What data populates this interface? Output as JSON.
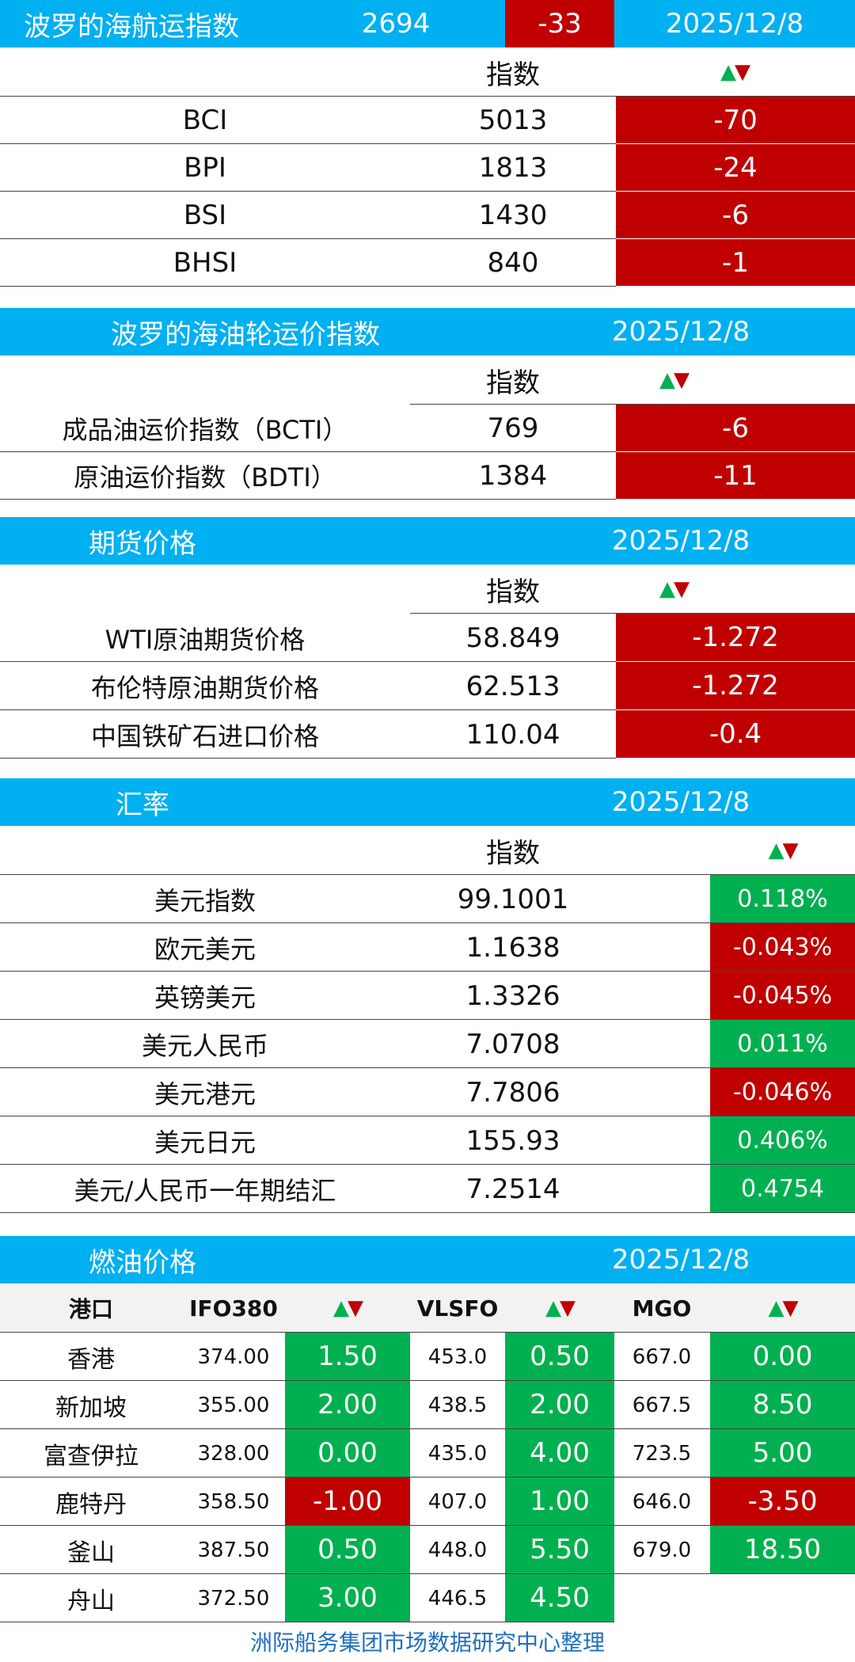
{
  "colors": {
    "header_blue": "#00b0f0",
    "down_red": "#c00000",
    "up_green": "#00b050",
    "footer_blue": "#1f6fc0"
  },
  "baltic": {
    "title": "波罗的海航运指数",
    "value": "2694",
    "change": "-33",
    "date": "2025/12/8",
    "col_index": "指数",
    "rows": [
      {
        "name": "BCI",
        "value": "5013",
        "change": "-70"
      },
      {
        "name": "BPI",
        "value": "1813",
        "change": "-24"
      },
      {
        "name": "BSI",
        "value": "1430",
        "change": "-6"
      },
      {
        "name": "BHSI",
        "value": "840",
        "change": "-1"
      }
    ]
  },
  "tanker": {
    "title": "波罗的海油轮运价指数",
    "date": "2025/12/8",
    "col_index": "指数",
    "rows": [
      {
        "name": "成品油运价指数（BCTI）",
        "value": "769",
        "change": "-6"
      },
      {
        "name": "原油运价指数（BDTI）",
        "value": "1384",
        "change": "-11"
      }
    ]
  },
  "futures": {
    "title": "期货价格",
    "date": "2025/12/8",
    "col_index": "指数",
    "rows": [
      {
        "name": "WTI原油期货价格",
        "value": "58.849",
        "change": "-1.272"
      },
      {
        "name": "布伦特原油期货价格",
        "value": "62.513",
        "change": "-1.272"
      },
      {
        "name": "中国铁矿石进口价格",
        "value": "110.04",
        "change": "-0.4"
      }
    ]
  },
  "fx": {
    "title": "汇率",
    "date": "2025/12/8",
    "col_index": "指数",
    "rows": [
      {
        "name": "美元指数",
        "value": "99.1001",
        "change": "0.118%",
        "dir": "up"
      },
      {
        "name": "欧元美元",
        "value": "1.1638",
        "change": "-0.043%",
        "dir": "down"
      },
      {
        "name": "英镑美元",
        "value": "1.3326",
        "change": "-0.045%",
        "dir": "down"
      },
      {
        "name": "美元人民币",
        "value": "7.0708",
        "change": "0.011%",
        "dir": "up"
      },
      {
        "name": "美元港元",
        "value": "7.7806",
        "change": "-0.046%",
        "dir": "down"
      },
      {
        "name": "美元日元",
        "value": "155.93",
        "change": "0.406%",
        "dir": "up"
      },
      {
        "name": "美元/人民币一年期结汇",
        "value": "7.2514",
        "change": "0.4754",
        "dir": "up"
      }
    ]
  },
  "bunker": {
    "title": "燃油价格",
    "date": "2025/12/8",
    "col_port": "港口",
    "col_ifo": "IFO380",
    "col_vlsfo": "VLSFO",
    "col_mgo": "MGO",
    "rows": [
      {
        "port": "香港",
        "ifo": "374.00",
        "ifo_chg": "1.50",
        "ifo_dir": "up",
        "vlsfo": "453.0",
        "vlsfo_chg": "0.50",
        "vlsfo_dir": "up",
        "mgo": "667.0",
        "mgo_chg": "0.00",
        "mgo_dir": "up"
      },
      {
        "port": "新加坡",
        "ifo": "355.00",
        "ifo_chg": "2.00",
        "ifo_dir": "up",
        "vlsfo": "438.5",
        "vlsfo_chg": "2.00",
        "vlsfo_dir": "up",
        "mgo": "667.5",
        "mgo_chg": "8.50",
        "mgo_dir": "up"
      },
      {
        "port": "富查伊拉",
        "ifo": "328.00",
        "ifo_chg": "0.00",
        "ifo_dir": "up",
        "vlsfo": "435.0",
        "vlsfo_chg": "4.00",
        "vlsfo_dir": "up",
        "mgo": "723.5",
        "mgo_chg": "5.00",
        "mgo_dir": "up"
      },
      {
        "port": "鹿特丹",
        "ifo": "358.50",
        "ifo_chg": "-1.00",
        "ifo_dir": "down",
        "vlsfo": "407.0",
        "vlsfo_chg": "1.00",
        "vlsfo_dir": "up",
        "mgo": "646.0",
        "mgo_chg": "-3.50",
        "mgo_dir": "down"
      },
      {
        "port": "釜山",
        "ifo": "387.50",
        "ifo_chg": "0.50",
        "ifo_dir": "up",
        "vlsfo": "448.0",
        "vlsfo_chg": "5.50",
        "vlsfo_dir": "up",
        "mgo": "679.0",
        "mgo_chg": "18.50",
        "mgo_dir": "up"
      },
      {
        "port": "舟山",
        "ifo": "372.50",
        "ifo_chg": "3.00",
        "ifo_dir": "up",
        "vlsfo": "446.5",
        "vlsfo_chg": "4.50",
        "vlsfo_dir": "up"
      }
    ]
  },
  "footer": "洲际船务集团市场数据研究中心整理"
}
